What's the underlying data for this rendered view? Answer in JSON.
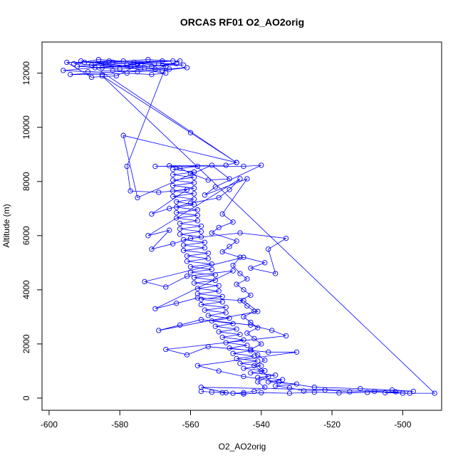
{
  "chart_data": {
    "type": "scatter",
    "title": "ORCAS RF01 O2_AO2orig",
    "xlabel": "O2_AO2orig",
    "ylabel": "Altitude (m)",
    "xlim": [
      -602,
      -489
    ],
    "ylim": [
      -450,
      13150
    ],
    "xticks": [
      -600,
      -580,
      -560,
      -540,
      -520,
      -500
    ],
    "yticks": [
      0,
      2000,
      4000,
      6000,
      8000,
      10000,
      12000
    ],
    "grid": false,
    "connected": true,
    "marker": "open-circle",
    "color": "#0000ff",
    "series": [
      {
        "points": [
          [
            -505,
            200
          ],
          [
            -498,
            180
          ],
          [
            -508,
            250
          ],
          [
            -515,
            230
          ],
          [
            -522,
            300
          ],
          [
            -528,
            260
          ],
          [
            -532,
            380
          ],
          [
            -536,
            450
          ],
          [
            -530,
            520
          ],
          [
            -538,
            600
          ],
          [
            -534,
            680
          ],
          [
            -541,
            760
          ],
          [
            -536,
            850
          ],
          [
            -543,
            930
          ],
          [
            -539,
            1010
          ],
          [
            -545,
            1100
          ],
          [
            -540,
            1190
          ],
          [
            -546,
            1280
          ],
          [
            -541,
            1370
          ],
          [
            -547,
            1460
          ],
          [
            -542,
            1550
          ],
          [
            -548,
            1650
          ],
          [
            -543,
            1750
          ],
          [
            -549,
            1850
          ],
          [
            -544,
            1950
          ],
          [
            -550,
            2050
          ],
          [
            -545,
            2150
          ],
          [
            -551,
            2250
          ],
          [
            -546,
            2350
          ],
          [
            -552,
            2450
          ],
          [
            -547,
            2550
          ],
          [
            -553,
            2650
          ],
          [
            -548,
            2750
          ],
          [
            -554,
            2850
          ],
          [
            -549,
            2950
          ],
          [
            -555,
            3050
          ],
          [
            -550,
            3150
          ],
          [
            -556,
            3250
          ],
          [
            -550,
            3350
          ],
          [
            -557,
            3450
          ],
          [
            -551,
            3550
          ],
          [
            -557,
            3650
          ],
          [
            -551,
            3750
          ],
          [
            -558,
            3850
          ],
          [
            -552,
            3950
          ],
          [
            -558,
            4050
          ],
          [
            -552,
            4150
          ],
          [
            -559,
            4250
          ],
          [
            -553,
            4350
          ],
          [
            -559,
            4450
          ],
          [
            -553,
            4550
          ],
          [
            -560,
            4650
          ],
          [
            -554,
            4750
          ],
          [
            -560,
            4850
          ],
          [
            -554,
            4950
          ],
          [
            -561,
            5050
          ],
          [
            -555,
            5150
          ],
          [
            -561,
            5250
          ],
          [
            -555,
            5350
          ],
          [
            -562,
            5450
          ],
          [
            -556,
            5550
          ],
          [
            -562,
            5650
          ],
          [
            -556,
            5750
          ],
          [
            -562,
            5850
          ],
          [
            -557,
            5950
          ],
          [
            -563,
            6050
          ],
          [
            -557,
            6150
          ],
          [
            -563,
            6250
          ],
          [
            -557,
            6350
          ],
          [
            -563,
            6450
          ],
          [
            -558,
            6550
          ],
          [
            -564,
            6650
          ],
          [
            -558,
            6750
          ],
          [
            -564,
            6850
          ],
          [
            -558,
            6950
          ],
          [
            -564,
            7050
          ],
          [
            -559,
            7150
          ],
          [
            -564,
            7250
          ],
          [
            -559,
            7350
          ],
          [
            -565,
            7450
          ],
          [
            -559,
            7550
          ],
          [
            -565,
            7650
          ],
          [
            -559,
            7750
          ],
          [
            -565,
            7850
          ],
          [
            -559,
            7950
          ],
          [
            -565,
            8050
          ],
          [
            -559,
            8150
          ],
          [
            -565,
            8250
          ],
          [
            -559,
            8350
          ],
          [
            -565,
            8450
          ],
          [
            -558,
            8560
          ],
          [
            -570,
            8560
          ],
          [
            -550,
            8600
          ],
          [
            -547,
            8700
          ],
          [
            -588,
            12300
          ],
          [
            -582,
            12400
          ],
          [
            -575,
            12350
          ],
          [
            -568,
            12450
          ],
          [
            -592,
            12250
          ],
          [
            -585,
            12200
          ],
          [
            -578,
            12300
          ],
          [
            -571,
            12250
          ],
          [
            -564,
            12350
          ],
          [
            -590,
            12400
          ],
          [
            -583,
            12450
          ],
          [
            -576,
            12400
          ],
          [
            -569,
            12350
          ],
          [
            -562,
            12300
          ],
          [
            -587,
            12200
          ],
          [
            -580,
            12150
          ],
          [
            -573,
            12200
          ],
          [
            -566,
            12150
          ],
          [
            -593,
            12350
          ],
          [
            -586,
            12500
          ],
          [
            -579,
            12450
          ],
          [
            -572,
            12500
          ],
          [
            -565,
            12450
          ],
          [
            -596,
            12100
          ],
          [
            -589,
            12050
          ],
          [
            -582,
            12100
          ],
          [
            -575,
            12050
          ],
          [
            -568,
            12100
          ],
          [
            -561,
            12200
          ],
          [
            -594,
            11950
          ],
          [
            -585,
            11950
          ],
          [
            -578,
            12000
          ],
          [
            -571,
            11950
          ],
          [
            -567,
            12000
          ],
          [
            -591,
            12450
          ],
          [
            -584,
            12350
          ],
          [
            -577,
            12250
          ],
          [
            -570,
            12150
          ],
          [
            -563,
            12450
          ],
          [
            -595,
            12400
          ],
          [
            -588,
            11850
          ],
          [
            -581,
            11900
          ],
          [
            -574,
            12350
          ],
          [
            -567,
            12250
          ],
          [
            -578,
            8560
          ],
          [
            -577,
            7650
          ],
          [
            -569,
            7600
          ],
          [
            -561,
            7700
          ],
          [
            -571,
            6800
          ],
          [
            -566,
            7000
          ],
          [
            -560,
            7200
          ],
          [
            -552,
            7400
          ],
          [
            -549,
            7700
          ],
          [
            -546,
            8100
          ],
          [
            -572,
            6000
          ],
          [
            -566,
            6200
          ],
          [
            -571,
            5500
          ],
          [
            -565,
            5700
          ],
          [
            -560,
            5900
          ],
          [
            -546,
            6100
          ],
          [
            -533,
            5900
          ],
          [
            -538,
            5500
          ],
          [
            -536,
            4600
          ],
          [
            -543,
            4800
          ],
          [
            -539,
            5000
          ],
          [
            -545,
            5200
          ],
          [
            -573,
            4300
          ],
          [
            -567,
            4100
          ],
          [
            -561,
            4500
          ],
          [
            -548,
            4700
          ],
          [
            -570,
            3300
          ],
          [
            -564,
            3500
          ],
          [
            -558,
            3700
          ],
          [
            -545,
            3600
          ],
          [
            -541,
            3200
          ],
          [
            -569,
            2500
          ],
          [
            -563,
            2700
          ],
          [
            -557,
            2900
          ],
          [
            -543,
            2700
          ],
          [
            -537,
            2500
          ],
          [
            -533,
            2300
          ],
          [
            -567,
            1800
          ],
          [
            -561,
            1600
          ],
          [
            -555,
            1900
          ],
          [
            -538,
            1700
          ],
          [
            -530,
            1700
          ],
          [
            -558,
            1200
          ],
          [
            -552,
            1000
          ],
          [
            -545,
            800
          ],
          [
            -535,
            600
          ],
          [
            -525,
            400
          ],
          [
            -512,
            350
          ],
          [
            -503,
            300
          ],
          [
            -497,
            250
          ],
          [
            -557,
            400
          ],
          [
            -550,
            200
          ],
          [
            -545,
            150
          ],
          [
            -540,
            200
          ],
          [
            -532,
            180
          ],
          [
            -525,
            220
          ],
          [
            -518,
            190
          ],
          [
            -510,
            210
          ],
          [
            -502,
            230
          ],
          [
            -500,
            180
          ],
          [
            -491,
            180
          ],
          [
            -585,
            11900
          ],
          [
            -560,
            9800
          ],
          [
            -547,
            8700
          ],
          [
            -579,
            9700
          ],
          [
            -575,
            7400
          ],
          [
            -554,
            8600
          ],
          [
            -549,
            8100
          ],
          [
            -555,
            8050
          ],
          [
            -560,
            8300
          ],
          [
            -563,
            8500
          ],
          [
            -566,
            8580
          ],
          [
            -545,
            8560
          ],
          [
            -540,
            8600
          ],
          [
            -553,
            7800
          ],
          [
            -556,
            7500
          ],
          [
            -544,
            8100
          ],
          [
            -551,
            6800
          ],
          [
            -548,
            6500
          ],
          [
            -552,
            6300
          ],
          [
            -554,
            6100
          ],
          [
            -547,
            5800
          ],
          [
            -549,
            5600
          ],
          [
            -551,
            5400
          ],
          [
            -546,
            5200
          ],
          [
            -548,
            4900
          ],
          [
            -546,
            4600
          ],
          [
            -544,
            4400
          ],
          [
            -547,
            4200
          ],
          [
            -545,
            4000
          ],
          [
            -543,
            3800
          ],
          [
            -546,
            3600
          ],
          [
            -544,
            3400
          ],
          [
            -542,
            3200
          ],
          [
            -545,
            3000
          ],
          [
            -543,
            2800
          ],
          [
            -541,
            2600
          ],
          [
            -544,
            2400
          ],
          [
            -542,
            2200
          ],
          [
            -540,
            2000
          ],
          [
            -543,
            1800
          ],
          [
            -541,
            1600
          ],
          [
            -539,
            1400
          ],
          [
            -542,
            1200
          ],
          [
            -540,
            1000
          ],
          [
            -538,
            800
          ],
          [
            -541,
            600
          ],
          [
            -539,
            400
          ],
          [
            -542,
            250
          ],
          [
            -545,
            200
          ],
          [
            -548,
            180
          ],
          [
            -551,
            200
          ],
          [
            -554,
            220
          ],
          [
            -557,
            250
          ]
        ]
      }
    ]
  }
}
